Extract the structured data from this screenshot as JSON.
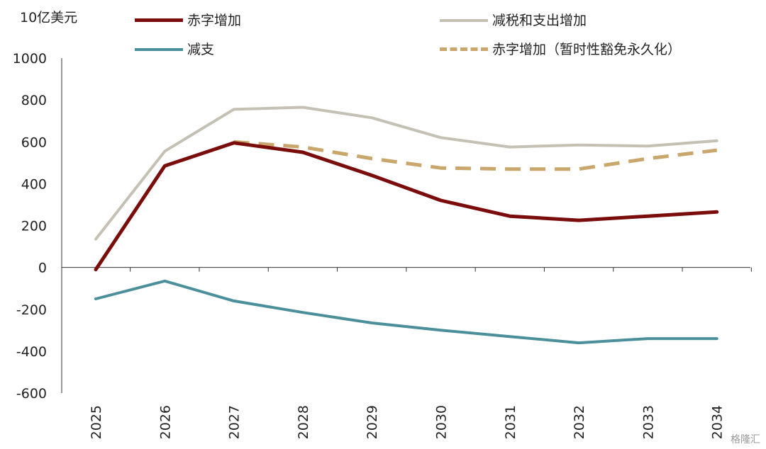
{
  "chart_data": {
    "type": "line",
    "unit_label": "10亿美元",
    "categories": [
      "2025",
      "2026",
      "2027",
      "2028",
      "2029",
      "2030",
      "2031",
      "2032",
      "2033",
      "2034"
    ],
    "ylim": [
      -600,
      1000
    ],
    "yticks": [
      1000,
      800,
      600,
      400,
      200,
      0,
      -200,
      -400,
      -600
    ],
    "ytick_labels": [
      "1000",
      "800",
      "600",
      "400",
      "200",
      "0",
      "-200",
      "-400",
      "-600"
    ],
    "grid": false,
    "legend_position": "top",
    "series": [
      {
        "name": "赤字增加",
        "color": "#7B0C0C",
        "style": "solid",
        "width": 5,
        "values": [
          -10,
          485,
          595,
          550,
          440,
          320,
          245,
          225,
          245,
          265
        ]
      },
      {
        "name": "减税和支出增加",
        "color": "#C4C1B4",
        "style": "solid",
        "width": 4,
        "values": [
          135,
          555,
          755,
          765,
          715,
          620,
          575,
          585,
          580,
          605
        ]
      },
      {
        "name": "减支",
        "color": "#4A8F99",
        "style": "solid",
        "width": 4,
        "values": [
          -150,
          -65,
          -160,
          -215,
          -265,
          -300,
          -330,
          -360,
          -340,
          -340
        ]
      },
      {
        "name": "赤字增加（暂时性豁免永久化）",
        "color": "#C9A66B",
        "style": "dashed",
        "width": 5,
        "values": [
          null,
          null,
          600,
          575,
          520,
          475,
          470,
          470,
          520,
          560
        ]
      }
    ]
  },
  "watermark": "格隆汇"
}
